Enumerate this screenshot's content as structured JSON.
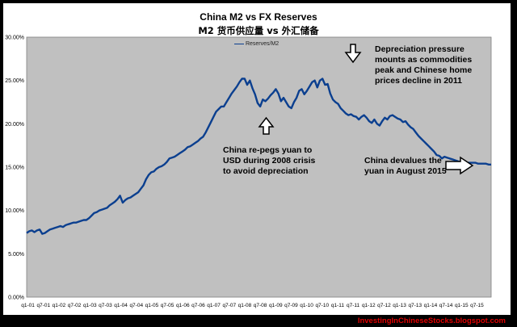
{
  "chart_data": {
    "type": "line",
    "title": "China M2 vs FX Reserves",
    "subtitle": "M2 货币供应量  vs  外汇储备",
    "legend": "Reserves/M2",
    "legend_position": "top-center",
    "grid": false,
    "ylim": [
      0,
      30
    ],
    "yticks": [
      "0.00%",
      "5.00%",
      "10.00%",
      "15.00%",
      "20.00%",
      "25.00%",
      "30.00%"
    ],
    "xticks": [
      "q1-01",
      "q7-01",
      "q1-02",
      "q7-02",
      "q1-03",
      "q7-03",
      "q1-04",
      "q7-04",
      "q1-05",
      "q7-05",
      "q1-06",
      "q7-06",
      "q1-07",
      "q7-07",
      "q1-08",
      "q7-08",
      "q1-09",
      "q7-09",
      "q1-10",
      "q7-10",
      "q1-11",
      "q7-11",
      "q1-12",
      "q7-12",
      "q1-13",
      "q7-13",
      "q1-14",
      "q7-14",
      "q1-15",
      "q7-15"
    ],
    "series": [
      {
        "name": "Reserves/M2",
        "color": "#0b3f8f",
        "x": [
          0,
          1,
          2,
          3,
          4,
          5,
          6,
          7,
          8,
          9,
          10,
          11,
          12,
          13,
          14,
          15,
          16,
          17,
          18,
          19,
          20,
          21,
          22,
          23,
          24,
          25,
          26,
          27,
          28,
          29,
          30,
          31,
          32,
          33,
          34,
          35,
          36,
          37,
          38,
          39,
          40,
          41,
          42,
          43,
          44,
          45,
          46,
          47,
          48,
          49,
          50,
          51,
          52,
          53,
          54,
          55,
          56,
          57,
          58,
          59,
          60,
          61,
          62,
          63,
          64,
          65,
          66,
          67,
          68,
          69,
          70,
          71,
          72,
          73,
          74,
          75,
          76,
          77,
          78,
          79,
          80,
          81,
          82,
          83,
          84,
          85,
          86,
          87,
          88,
          89,
          90,
          91,
          92,
          93,
          94,
          95,
          96,
          97,
          98,
          99,
          100,
          101,
          102,
          103,
          104,
          105,
          106,
          107,
          108,
          109,
          110,
          111,
          112,
          113,
          114,
          115,
          116,
          117,
          118,
          119,
          120,
          121,
          122,
          123,
          124,
          125,
          126,
          127,
          128,
          129,
          130,
          131,
          132,
          133,
          134,
          135,
          136,
          137,
          138,
          139,
          140,
          141,
          142,
          143,
          144,
          145,
          146,
          147,
          148,
          149,
          150,
          151,
          152,
          153,
          154,
          155,
          156,
          157,
          158,
          159,
          160,
          161,
          162,
          163,
          164,
          165,
          166,
          167,
          168,
          169,
          170,
          171,
          172,
          173,
          174,
          175,
          176,
          177,
          178,
          179
        ],
        "values": [
          7.4,
          7.6,
          7.7,
          7.5,
          7.7,
          7.8,
          7.3,
          7.4,
          7.6,
          7.8,
          7.9,
          8.0,
          8.1,
          8.2,
          8.1,
          8.3,
          8.4,
          8.5,
          8.6,
          8.6,
          8.7,
          8.8,
          8.9,
          8.9,
          9.1,
          9.4,
          9.7,
          9.8,
          10.0,
          10.1,
          10.2,
          10.3,
          10.6,
          10.8,
          11.0,
          11.3,
          11.7,
          10.9,
          11.2,
          11.4,
          11.5,
          11.7,
          11.9,
          12.1,
          12.5,
          12.9,
          13.6,
          14.1,
          14.4,
          14.5,
          14.8,
          15.0,
          15.1,
          15.3,
          15.6,
          16.0,
          16.1,
          16.2,
          16.4,
          16.6,
          16.8,
          17.0,
          17.3,
          17.4,
          17.6,
          17.8,
          18.0,
          18.3,
          18.5,
          19.0,
          19.6,
          20.2,
          20.8,
          21.4,
          21.7,
          22.0,
          22.0,
          22.5,
          23.0,
          23.5,
          23.9,
          24.3,
          24.8,
          25.2,
          25.2,
          24.5,
          25.0,
          24.1,
          23.4,
          22.4,
          22.0,
          22.8,
          22.6,
          22.9,
          23.3,
          23.6,
          24.0,
          23.5,
          22.6,
          23.0,
          22.5,
          22.0,
          21.8,
          22.5,
          23.0,
          23.8,
          24.0,
          23.4,
          23.8,
          24.3,
          24.8,
          25.0,
          24.2,
          25.0,
          25.2,
          24.5,
          24.6,
          23.5,
          22.8,
          22.5,
          22.3,
          21.8,
          21.5,
          21.2,
          21.0,
          21.1,
          20.9,
          20.8,
          20.5,
          20.8,
          21.0,
          20.7,
          20.3,
          20.1,
          20.5,
          20.0,
          19.8,
          20.3,
          20.7,
          20.5,
          20.9,
          21.0,
          20.8,
          20.6,
          20.5,
          20.2,
          20.3,
          19.9,
          19.6,
          19.4,
          19.0,
          18.6,
          18.3,
          18.0,
          17.7,
          17.4,
          17.1,
          16.8,
          16.4,
          16.3,
          16.0,
          16.2,
          16.1,
          16.0,
          15.9,
          15.8,
          15.7,
          15.6,
          15.6,
          15.6,
          15.5,
          15.5,
          15.5,
          15.5,
          15.4,
          15.4,
          15.4,
          15.4,
          15.3,
          15.3
        ]
      }
    ],
    "annotations": [
      {
        "text": "Depreciation pressure\nmounts as commodities\npeak and Chinese home\nprices decline in 2011"
      },
      {
        "text": "China re-pegs yuan to\nUSD during 2008 crisis\nto avoid depreciation"
      },
      {
        "text": "China devalues the\nyuan in August 2015"
      }
    ]
  },
  "watermark": "InvestingInChineseStocks.blogspot.com",
  "colors": {
    "frame": "#000000",
    "chart_bg": "#ffffff",
    "plot_bg": "#c0c0c0",
    "line": "#0b3f8f",
    "watermark": "#e00000"
  }
}
